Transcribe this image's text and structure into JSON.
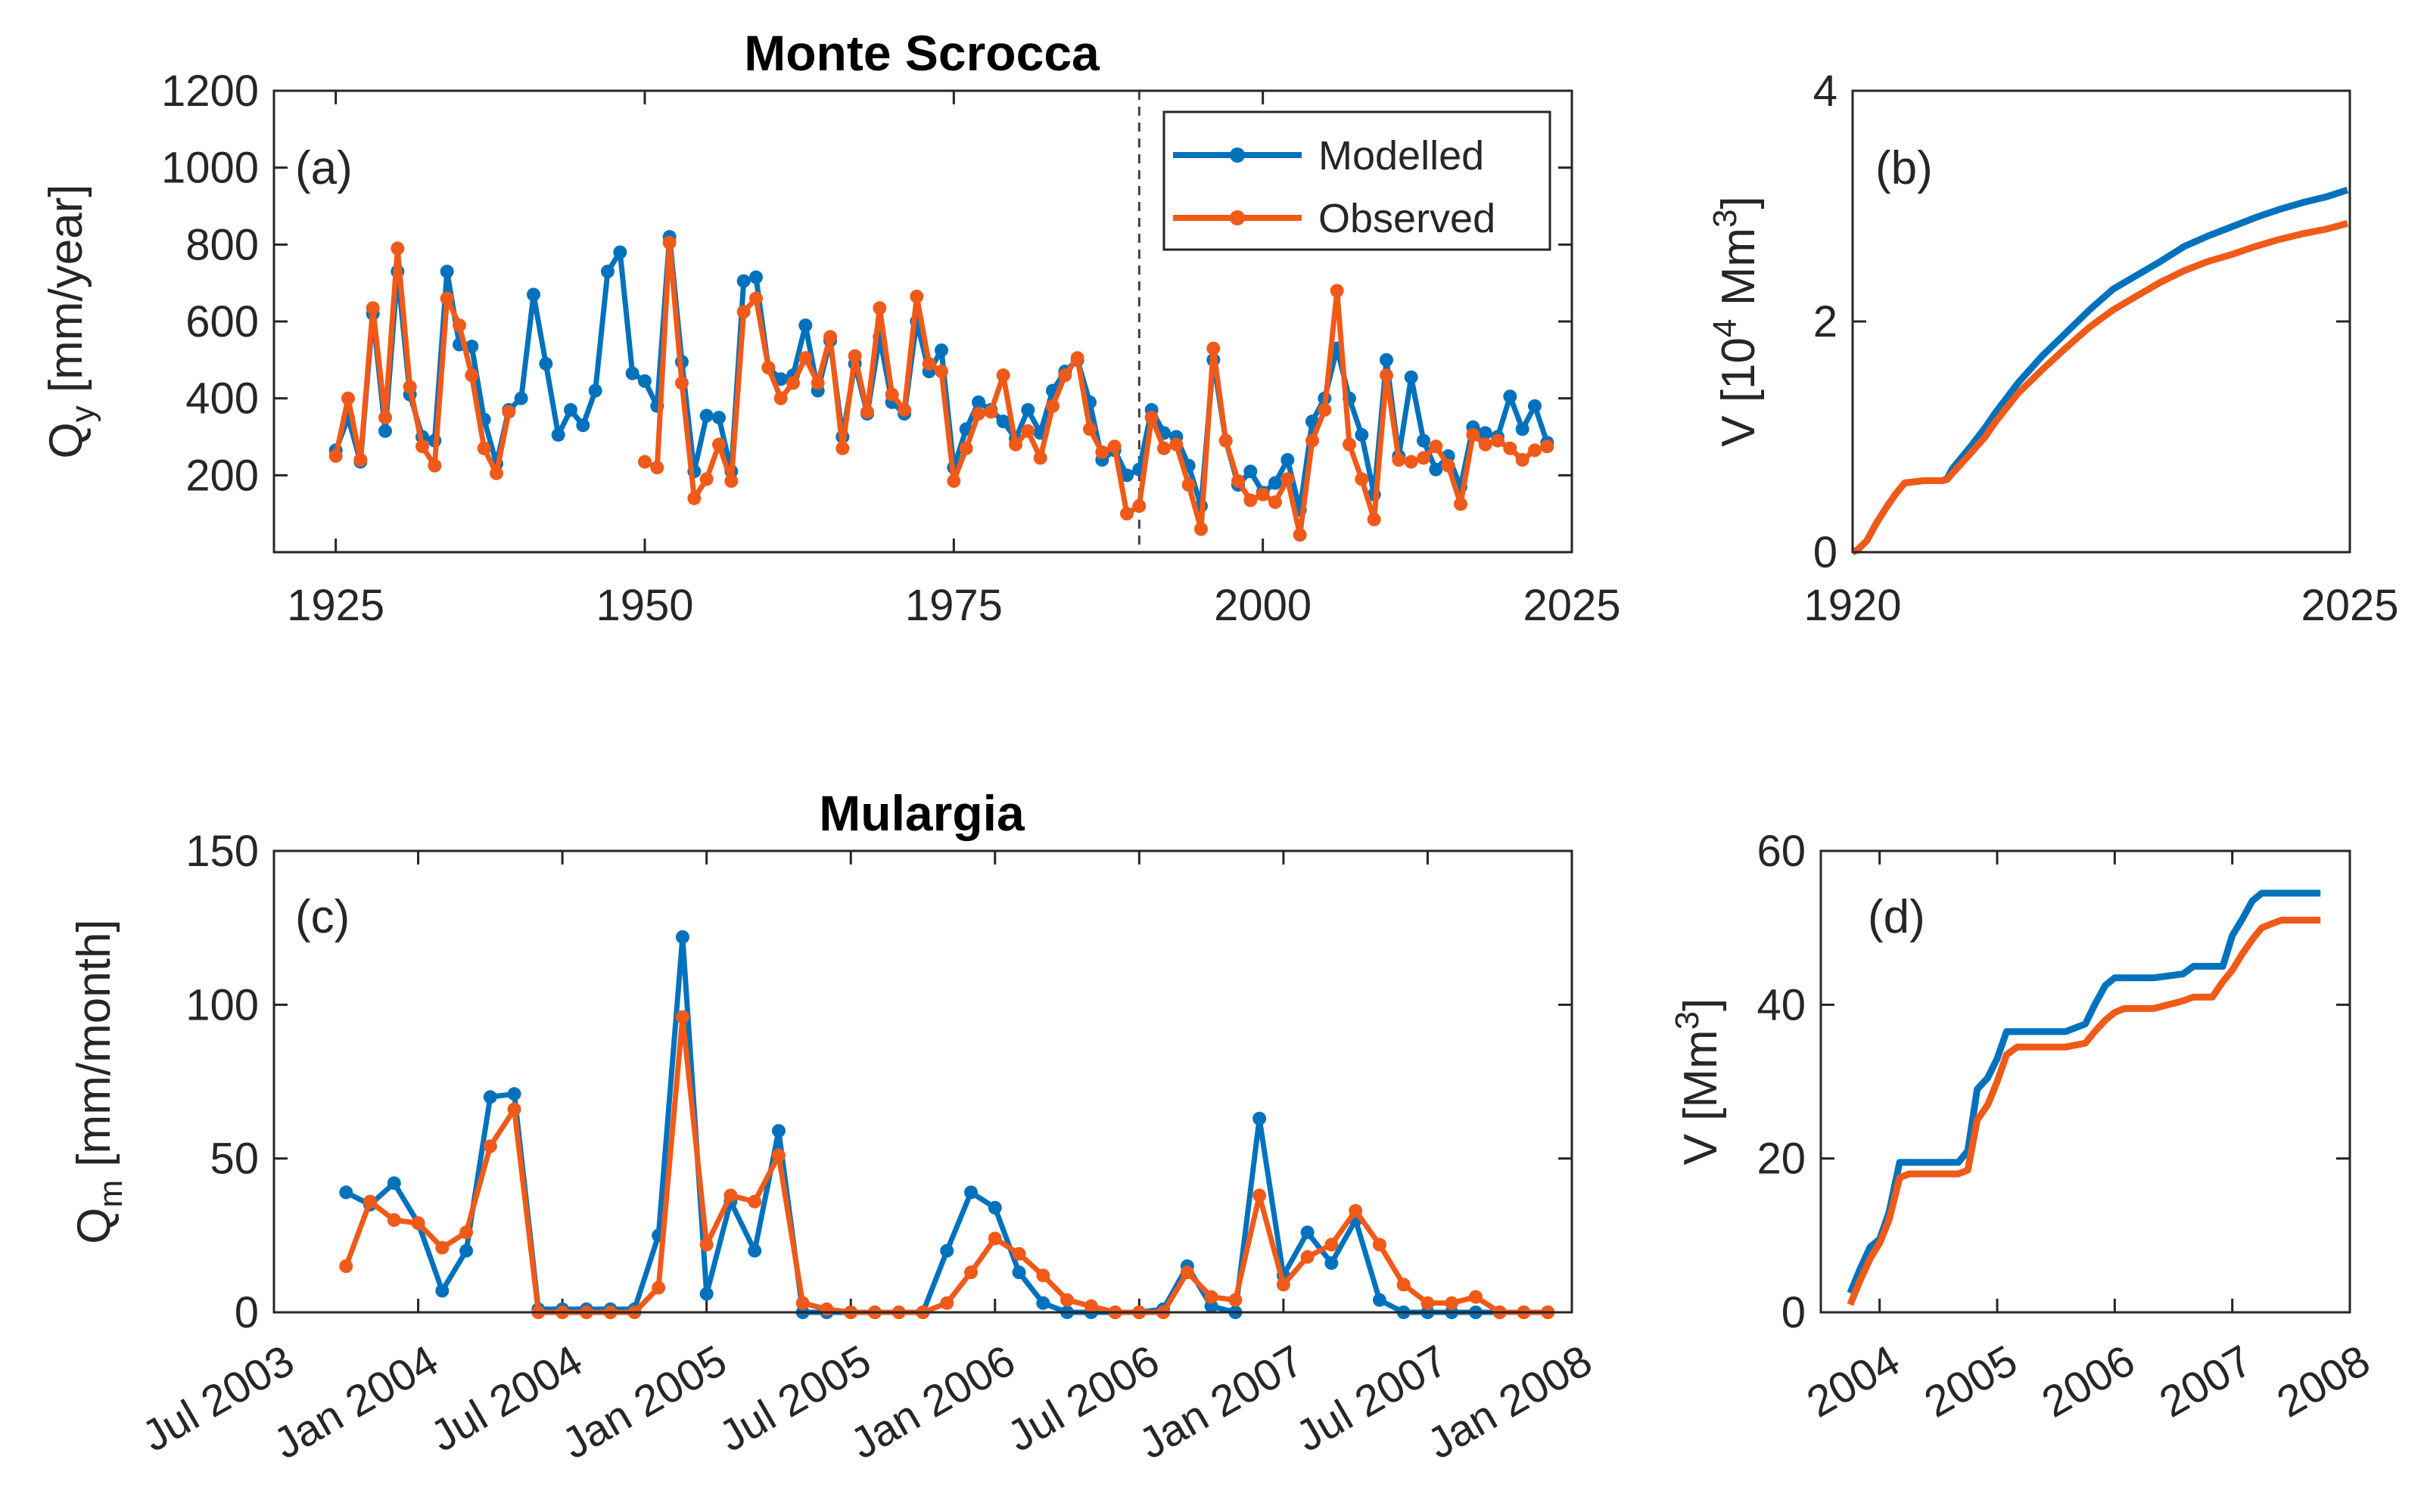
{
  "colors": {
    "modelled": "#0072BD",
    "observed": "#F05A19",
    "axis": "#262626"
  },
  "chart_data": [
    {
      "id": "a",
      "type": "line",
      "title": "Monte Scrocca",
      "panel_label": "(a)",
      "ylabel": "Q",
      "ylabel_sub": "y",
      "ylabel_unit": " [mm/year]",
      "xlim": [
        1920,
        2025
      ],
      "ylim": [
        0,
        1200
      ],
      "xticks": [
        1925,
        1950,
        1975,
        2000,
        2025
      ],
      "yticks": [
        200,
        400,
        600,
        800,
        1000,
        1200
      ],
      "vline_x": 1990,
      "legend": {
        "position": "top-right",
        "entries": [
          "Modelled",
          "Observed"
        ]
      },
      "series": [
        {
          "name": "Modelled",
          "x": [
            1925,
            1926,
            1927,
            1928,
            1929,
            1930,
            1931,
            1932,
            1933,
            1934,
            1935,
            1936,
            1937,
            1938,
            1939,
            1940,
            1941,
            1942,
            1943,
            1944,
            1945,
            1946,
            1947,
            1948,
            1949,
            1950,
            1951,
            1952,
            1953,
            1954,
            1955,
            1956,
            1957,
            1958,
            1959,
            1960,
            1961,
            1962,
            1963,
            1964,
            1965,
            1966,
            1967,
            1968,
            1969,
            1970,
            1971,
            1972,
            1973,
            1974,
            1975,
            1976,
            1977,
            1978,
            1979,
            1980,
            1981,
            1982,
            1983,
            1984,
            1985,
            1986,
            1987,
            1988,
            1989,
            1990,
            1991,
            1992,
            1993,
            1994,
            1995,
            1996,
            1997,
            1998,
            1999,
            2000,
            2001,
            2002,
            2003,
            2004,
            2005,
            2006,
            2007,
            2008,
            2009,
            2010,
            2011,
            2012,
            2013,
            2014,
            2015,
            2016,
            2017,
            2018,
            2019,
            2020,
            2021,
            2022,
            2023
          ],
          "values": [
            265,
            350,
            235,
            620,
            315,
            730,
            410,
            300,
            290,
            730,
            540,
            535,
            345,
            230,
            370,
            400,
            670,
            490,
            305,
            370,
            330,
            420,
            730,
            780,
            465,
            445,
            380,
            820,
            495,
            210,
            355,
            350,
            210,
            705,
            715,
            480,
            450,
            460,
            590,
            420,
            550,
            300,
            490,
            360,
            560,
            390,
            360,
            600,
            470,
            525,
            220,
            320,
            390,
            370,
            340,
            295,
            370,
            310,
            420,
            470,
            500,
            390,
            240,
            265,
            200,
            215,
            370,
            310,
            300,
            225,
            120,
            500,
            290,
            175,
            210,
            155,
            180,
            240,
            110,
            340,
            400,
            530,
            400,
            305,
            150,
            500,
            250,
            455,
            290,
            215,
            250,
            170,
            325,
            310,
            300,
            405,
            320,
            380,
            285
          ]
        },
        {
          "name": "Observed",
          "x": [
            1925,
            1926,
            1927,
            1928,
            1929,
            1930,
            1931,
            1932,
            1933,
            1934,
            1935,
            1936,
            1937,
            1938,
            1939,
            1950,
            1951,
            1952,
            1953,
            1954,
            1955,
            1956,
            1957,
            1958,
            1959,
            1960,
            1961,
            1962,
            1963,
            1964,
            1965,
            1966,
            1967,
            1968,
            1969,
            1970,
            1971,
            1972,
            1973,
            1974,
            1975,
            1976,
            1977,
            1978,
            1979,
            1980,
            1981,
            1982,
            1983,
            1984,
            1985,
            1986,
            1987,
            1988,
            1989,
            1990,
            1991,
            1992,
            1993,
            1994,
            1995,
            1996,
            1997,
            1998,
            1999,
            2000,
            2001,
            2002,
            2003,
            2004,
            2005,
            2006,
            2007,
            2008,
            2009,
            2010,
            2011,
            2012,
            2013,
            2014,
            2015,
            2016,
            2017,
            2018,
            2019,
            2020,
            2021,
            2022,
            2023
          ],
          "values": [
            250,
            400,
            240,
            635,
            350,
            790,
            430,
            275,
            225,
            660,
            590,
            460,
            270,
            205,
            365,
            235,
            220,
            805,
            440,
            140,
            190,
            280,
            185,
            625,
            660,
            480,
            400,
            440,
            505,
            440,
            560,
            270,
            510,
            365,
            635,
            410,
            370,
            665,
            490,
            470,
            185,
            270,
            360,
            365,
            460,
            280,
            315,
            245,
            380,
            460,
            505,
            320,
            260,
            275,
            100,
            120,
            350,
            270,
            280,
            175,
            60,
            530,
            290,
            185,
            135,
            150,
            130,
            190,
            45,
            290,
            370,
            680,
            280,
            190,
            85,
            460,
            240,
            235,
            245,
            275,
            225,
            125,
            305,
            280,
            290,
            270,
            240,
            265,
            275
          ]
        }
      ]
    },
    {
      "id": "b",
      "type": "line",
      "panel_label": "(b)",
      "ylabel": "V [10",
      "ylabel_sup": "4",
      "ylabel_unit": " Mm",
      "ylabel_sup2": "3",
      "ylabel_close": "]",
      "xlim": [
        1920,
        2025
      ],
      "ylim": [
        0,
        4
      ],
      "xticks": [
        1920,
        2025
      ],
      "yticks": [
        0,
        2,
        4
      ],
      "series": [
        {
          "name": "Modelled",
          "x": [
            1920,
            1921,
            1923,
            1925,
            1927,
            1929,
            1931,
            1935,
            1939,
            1940,
            1941,
            1943,
            1945,
            1948,
            1950,
            1955,
            1960,
            1965,
            1970,
            1975,
            1980,
            1985,
            1990,
            1995,
            2000,
            2005,
            2010,
            2015,
            2020,
            2024.5
          ],
          "values": [
            0,
            0.02,
            0.1,
            0.25,
            0.38,
            0.5,
            0.6,
            0.62,
            0.62,
            0.64,
            0.72,
            0.82,
            0.92,
            1.08,
            1.2,
            1.47,
            1.7,
            1.9,
            2.1,
            2.28,
            2.4,
            2.52,
            2.65,
            2.74,
            2.82,
            2.9,
            2.97,
            3.03,
            3.08,
            3.14
          ]
        },
        {
          "name": "Observed",
          "x": [
            1920,
            1921,
            1923,
            1925,
            1927,
            1929,
            1931,
            1935,
            1939,
            1940,
            1941,
            1943,
            1945,
            1948,
            1950,
            1955,
            1960,
            1965,
            1970,
            1975,
            1980,
            1985,
            1990,
            1995,
            2000,
            2005,
            2010,
            2015,
            2020,
            2024.5
          ],
          "values": [
            0,
            0.02,
            0.1,
            0.25,
            0.38,
            0.5,
            0.6,
            0.62,
            0.62,
            0.63,
            0.68,
            0.77,
            0.86,
            1.0,
            1.12,
            1.38,
            1.58,
            1.77,
            1.95,
            2.1,
            2.22,
            2.34,
            2.44,
            2.52,
            2.58,
            2.65,
            2.71,
            2.76,
            2.8,
            2.85
          ]
        }
      ]
    },
    {
      "id": "c",
      "type": "line",
      "title": "Mulargia",
      "panel_label": "(c)",
      "ylabel": "Q",
      "ylabel_sub": "m",
      "ylabel_unit": " [mm/month]",
      "xlim": [
        0,
        54
      ],
      "ylim": [
        0,
        150
      ],
      "xticks": [
        0,
        6,
        12,
        18,
        24,
        30,
        36,
        42,
        48,
        54
      ],
      "xticklabels": [
        "Jul 2003",
        "Jan 2004",
        "Jul 2004",
        "Jan 2005",
        "Jul 2005",
        "Jan 2006",
        "Jul 2006",
        "Jan 2007",
        "Jul 2007",
        "Jan 2008"
      ],
      "yticks": [
        0,
        50,
        100,
        150
      ],
      "series": [
        {
          "name": "Modelled",
          "x": [
            3,
            4,
            5,
            6,
            7,
            8,
            9,
            10,
            11,
            12,
            13,
            14,
            15,
            16,
            17,
            18,
            19,
            20,
            21,
            22,
            23,
            24,
            25,
            26,
            27,
            28,
            29,
            30,
            31,
            32,
            33,
            34,
            35,
            36,
            37,
            38,
            39,
            40,
            41,
            42,
            43,
            44,
            45,
            46,
            47,
            48,
            49,
            50,
            51,
            52,
            53
          ],
          "values": [
            39,
            35,
            42,
            29,
            7,
            20,
            70,
            71,
            1,
            1,
            1,
            1,
            1,
            25,
            122,
            6,
            36,
            20,
            59,
            0,
            0,
            0,
            0,
            0,
            0,
            20,
            39,
            34,
            13,
            3,
            0,
            0,
            0,
            0,
            1,
            15,
            2,
            0,
            63,
            12,
            26,
            16,
            30,
            4,
            0,
            0,
            0,
            0,
            0,
            0,
            0
          ]
        },
        {
          "name": "Observed",
          "x": [
            3,
            4,
            5,
            6,
            7,
            8,
            9,
            10,
            11,
            12,
            13,
            14,
            15,
            16,
            17,
            18,
            19,
            20,
            21,
            22,
            23,
            24,
            25,
            26,
            27,
            28,
            29,
            30,
            31,
            32,
            33,
            34,
            35,
            36,
            37,
            38,
            39,
            40,
            41,
            42,
            43,
            44,
            45,
            46,
            47,
            48,
            49,
            50,
            51,
            52,
            53
          ],
          "values": [
            15,
            36,
            30,
            29,
            21,
            26,
            54,
            66,
            0,
            0,
            0,
            0,
            0,
            8,
            96,
            22,
            38,
            36,
            51,
            3,
            1,
            0,
            0,
            0,
            0,
            3,
            13,
            24,
            19,
            12,
            4,
            2,
            0,
            0,
            0,
            13,
            5,
            4,
            38,
            9,
            18,
            22,
            33,
            22,
            9,
            3,
            3,
            5,
            0,
            0,
            0
          ]
        }
      ]
    },
    {
      "id": "d",
      "type": "line",
      "panel_label": "(d)",
      "ylabel": "V [Mm",
      "ylabel_sup": "3",
      "ylabel_close": "]",
      "xlim": [
        2003.5,
        2008
      ],
      "ylim": [
        0,
        60
      ],
      "xticks": [
        2004,
        2005,
        2006,
        2007,
        2008
      ],
      "yticks": [
        0,
        20,
        40,
        60
      ],
      "series": [
        {
          "name": "Modelled",
          "x": [
            2003.75,
            2003.83,
            2003.92,
            2004.0,
            2004.08,
            2004.17,
            2004.25,
            2004.33,
            2004.5,
            2004.67,
            2004.75,
            2004.83,
            2004.92,
            2005.0,
            2005.08,
            2005.17,
            2005.25,
            2005.42,
            2005.58,
            2005.75,
            2005.83,
            2005.92,
            2006.0,
            2006.08,
            2006.17,
            2006.33,
            2006.58,
            2006.67,
            2006.83,
            2006.92,
            2007.0,
            2007.08,
            2007.17,
            2007.25,
            2007.33,
            2007.42,
            2007.5,
            2007.67,
            2007.75
          ],
          "values": [
            2.5,
            5.5,
            8.5,
            9.5,
            13,
            19.5,
            19.5,
            19.5,
            19.5,
            19.5,
            21,
            29,
            30.5,
            33,
            36.5,
            36.5,
            36.5,
            36.5,
            36.5,
            37.5,
            40,
            42.5,
            43.5,
            43.5,
            43.5,
            43.5,
            44,
            45,
            45,
            45,
            49,
            51,
            53.5,
            54.5,
            54.5,
            54.5,
            54.5,
            54.5,
            54.5
          ]
        },
        {
          "name": "Observed",
          "x": [
            2003.75,
            2003.83,
            2003.92,
            2004.0,
            2004.08,
            2004.17,
            2004.25,
            2004.33,
            2004.5,
            2004.67,
            2004.75,
            2004.83,
            2004.92,
            2005.0,
            2005.08,
            2005.17,
            2005.25,
            2005.42,
            2005.58,
            2005.75,
            2005.83,
            2005.92,
            2006.0,
            2006.08,
            2006.17,
            2006.33,
            2006.58,
            2006.67,
            2006.83,
            2006.92,
            2007.0,
            2007.08,
            2007.17,
            2007.25,
            2007.33,
            2007.42,
            2007.5,
            2007.67,
            2007.75
          ],
          "values": [
            1,
            4,
            7,
            9,
            12,
            17.5,
            18,
            18,
            18,
            18,
            18.5,
            25,
            27,
            30,
            33.5,
            34.5,
            34.5,
            34.5,
            34.5,
            35,
            36.5,
            38,
            39,
            39.5,
            39.5,
            39.5,
            40.5,
            41,
            41,
            43,
            44.5,
            46.5,
            48.5,
            50,
            50.5,
            51,
            51,
            51,
            51
          ]
        }
      ]
    }
  ]
}
